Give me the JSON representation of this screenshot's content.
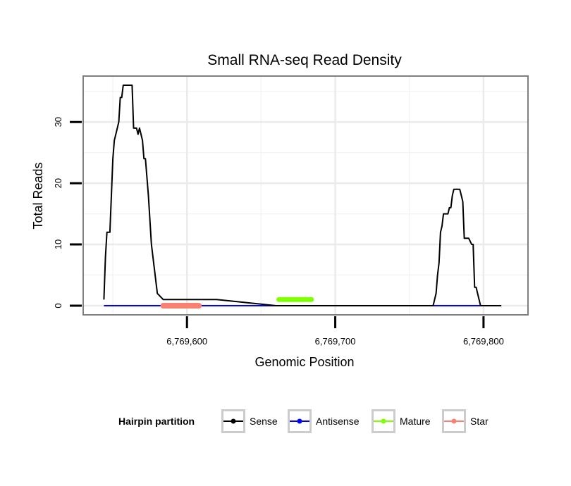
{
  "chart_data": {
    "type": "line",
    "title": "Small RNA-seq Read Density",
    "xlabel": "Genomic Position",
    "ylabel": "Total Reads",
    "xlim": [
      6769530,
      6769830
    ],
    "ylim": [
      -1.5,
      37.5
    ],
    "x_ticks": [
      6769600,
      6769700,
      6769800
    ],
    "x_tick_labels": [
      "6,769,600",
      "6,769,700",
      "6,769,800"
    ],
    "y_ticks": [
      0,
      10,
      20,
      30
    ],
    "y_tick_labels": [
      "0",
      "10",
      "20",
      "30"
    ],
    "grid": true,
    "legend": {
      "title": "Hairpin partition",
      "position": "bottom",
      "entries": [
        "Sense",
        "Antisense",
        "Mature",
        "Star"
      ]
    },
    "series": [
      {
        "name": "Sense",
        "color": "#000000",
        "x": [
          6769544,
          6769545,
          6769546,
          6769547,
          6769548,
          6769549,
          6769550,
          6769551,
          6769552,
          6769553,
          6769554,
          6769555,
          6769556,
          6769557,
          6769558,
          6769559,
          6769560,
          6769561,
          6769562,
          6769563,
          6769564,
          6769565,
          6769566,
          6769567,
          6769568,
          6769569,
          6769570,
          6769571,
          6769572,
          6769574,
          6769576,
          6769580,
          6769584,
          6769586,
          6769590,
          6769620,
          6769660,
          6769700,
          6769740,
          6769764,
          6769766,
          6769767,
          6769768,
          6769769,
          6769770,
          6769771,
          6769772,
          6769773,
          6769774,
          6769776,
          6769777,
          6769778,
          6769779,
          6769780,
          6769781,
          6769782,
          6769783,
          6769784,
          6769785,
          6769786,
          6769787,
          6769788,
          6769789,
          6769790,
          6769792,
          6769793,
          6769794,
          6769795,
          6769796,
          6769797,
          6769798,
          6769799,
          6769800,
          6769801,
          6769806,
          6769812
        ],
        "values": [
          1,
          8,
          12,
          12,
          12,
          18,
          24,
          27,
          28,
          29,
          30,
          34,
          34,
          36,
          36,
          36,
          36,
          36,
          36,
          36,
          29,
          29,
          29,
          28,
          29,
          28,
          27,
          24,
          24,
          18,
          10,
          2,
          1,
          1,
          1,
          1,
          0,
          0,
          0,
          0,
          0,
          1,
          2,
          5,
          7,
          12,
          13,
          15,
          15,
          15,
          16,
          16,
          18,
          19,
          19,
          19,
          19,
          19,
          18,
          17,
          11,
          11,
          11,
          11,
          10,
          10,
          3,
          3,
          2,
          1,
          0,
          0,
          0,
          0,
          0,
          0
        ]
      },
      {
        "name": "Antisense",
        "color": "#0000ff",
        "x": [
          6769544,
          6769812
        ],
        "values": [
          0,
          0
        ]
      },
      {
        "name": "Mature",
        "color": "#80ff00",
        "x": [
          6769662,
          6769684
        ],
        "values": [
          1,
          1
        ]
      },
      {
        "name": "Star",
        "color": "#fa8072",
        "x": [
          6769584,
          6769608
        ],
        "values": [
          0,
          0
        ]
      }
    ]
  }
}
